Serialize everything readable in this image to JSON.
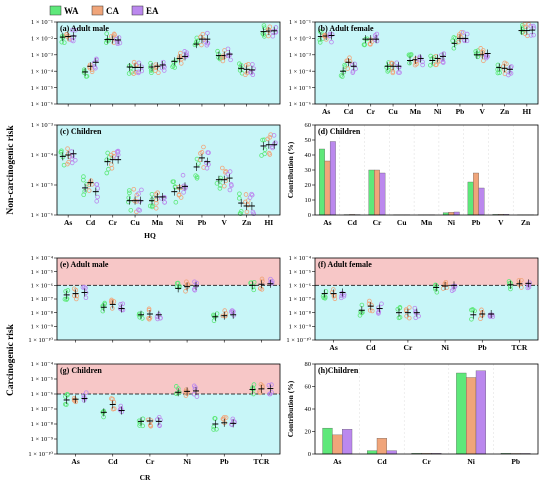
{
  "legend": [
    {
      "label": "WA",
      "color": "#5ee87a"
    },
    {
      "label": "CA",
      "color": "#f0a57a"
    },
    {
      "label": "EA",
      "color": "#bb88ee"
    }
  ],
  "colors": {
    "safe_bg": "#c8f6f8",
    "risk_bg": "#f7c7c7",
    "threshold_line": "#333333",
    "WA": "#5ee87a",
    "CA": "#f0a57a",
    "EA": "#bb88ee"
  },
  "section_labels": {
    "noncarc": "Non-carcinogenic risk",
    "carc": "Carcinogenic risk",
    "hq_axis": "HQ",
    "cr_axis": "CR",
    "contribution": "Contribution (%)"
  },
  "chart_data": [
    {
      "id": "a",
      "type": "scatter",
      "scale": "log",
      "title": "(a) Adult male",
      "ylim": [
        1e-06,
        0.1
      ],
      "tick_labels": [
        "1 × 10⁻⁶",
        "1 × 10⁻⁵",
        "1 × 10⁻⁴",
        "1 × 10⁻³",
        "1 × 10⁻²",
        "1 × 10⁻¹"
      ],
      "categories": [
        "As",
        "Cd",
        "Cr",
        "Cu",
        "Mn",
        "Ni",
        "Pb",
        "V",
        "Zn",
        "HI"
      ],
      "show_xlabels": false,
      "series": [
        {
          "name": "WA",
          "values": [
            0.012,
            9e-05,
            0.0085,
            0.00018,
            0.00018,
            0.0004,
            0.0045,
            0.0009,
            0.00015,
            0.026
          ]
        },
        {
          "name": "CA",
          "values": [
            0.013,
            0.0002,
            0.0085,
            0.00017,
            0.0002,
            0.0006,
            0.009,
            0.0009,
            0.00013,
            0.028
          ]
        },
        {
          "name": "EA",
          "values": [
            0.014,
            0.00035,
            0.008,
            0.00017,
            0.00024,
            0.0008,
            0.009,
            0.0011,
            0.00012,
            0.029
          ]
        }
      ]
    },
    {
      "id": "b",
      "type": "scatter",
      "scale": "log",
      "title": "(b) Adult female",
      "ylim": [
        1e-06,
        0.1
      ],
      "tick_labels": [
        "1 × 10⁻⁶",
        "1 × 10⁻⁵",
        "1 × 10⁻⁴",
        "1 × 10⁻³",
        "1 × 10⁻²",
        "1 × 10⁻¹"
      ],
      "categories": [
        "As",
        "Cd",
        "Cr",
        "Cu",
        "Mn",
        "Ni",
        "Pb",
        "V",
        "Zn",
        "HI"
      ],
      "show_xlabels": true,
      "series": [
        {
          "name": "WA",
          "values": [
            0.013,
            0.0001,
            0.009,
            0.0002,
            0.00045,
            0.00045,
            0.005,
            0.001,
            0.00017,
            0.03
          ]
        },
        {
          "name": "CA",
          "values": [
            0.014,
            0.00035,
            0.009,
            0.0002,
            0.0005,
            0.0006,
            0.01,
            0.001,
            0.00015,
            0.03
          ]
        },
        {
          "name": "EA",
          "values": [
            0.015,
            0.0002,
            0.009,
            0.0002,
            0.0006,
            0.0008,
            0.01,
            0.0012,
            0.00013,
            0.032
          ]
        }
      ]
    },
    {
      "id": "c",
      "type": "scatter",
      "scale": "log",
      "title": "(c) Children",
      "ylim": [
        1e-06,
        0.001
      ],
      "tick_labels": [
        "1 × 10⁻⁶",
        "1 × 10⁻⁵",
        "1 × 10⁻⁴",
        "1 × 10⁻³"
      ],
      "categories": [
        "As",
        "Cd",
        "Cr",
        "Cu",
        "Mn",
        "Ni",
        "Pb",
        "V",
        "Zn",
        "HI"
      ],
      "show_xlabels": true,
      "series": [
        {
          "name": "WA",
          "values": [
            9e-05,
            8e-06,
            6e-05,
            3e-06,
            3e-06,
            6e-06,
            4e-05,
            1.5e-05,
            2.5e-06,
            0.0002
          ]
        },
        {
          "name": "CA",
          "values": [
            0.0001,
            1.2e-05,
            7e-05,
            3e-06,
            4e-06,
            8e-06,
            8e-05,
            1.5e-05,
            2e-06,
            0.00022
          ]
        },
        {
          "name": "EA",
          "values": [
            0.00011,
            6e-06,
            7e-05,
            3e-06,
            4e-06,
            9e-06,
            6e-05,
            1.7e-05,
            2e-06,
            0.00022
          ]
        }
      ]
    },
    {
      "id": "d",
      "type": "bar",
      "title": "(d) Children",
      "ylim": [
        0,
        60
      ],
      "ticks": [
        0,
        10,
        20,
        30,
        40,
        50,
        60
      ],
      "ylabel": "Contribution (%)",
      "categories": [
        "As",
        "Cd",
        "Cr",
        "Cu",
        "Mn",
        "Ni",
        "Pb",
        "V",
        "Zn"
      ],
      "series": [
        {
          "name": "WA",
          "values": [
            44,
            0.3,
            30,
            0.2,
            0.2,
            1.5,
            22,
            0.4,
            0.2
          ]
        },
        {
          "name": "CA",
          "values": [
            36,
            0.4,
            30,
            0.2,
            0.2,
            1.8,
            28,
            0.5,
            0.2
          ]
        },
        {
          "name": "EA",
          "values": [
            49,
            0.3,
            28,
            0.2,
            0.2,
            2.0,
            18,
            0.5,
            0.2
          ]
        }
      ]
    },
    {
      "id": "e",
      "type": "scatter",
      "scale": "log",
      "title": "(e) Adult male",
      "ylim": [
        1e-10,
        0.0001
      ],
      "threshold": 1e-06,
      "tick_labels": [
        "1 × 10⁻¹⁰",
        "1 × 10⁻⁹",
        "1 × 10⁻⁸",
        "1 × 10⁻⁷",
        "1 × 10⁻⁶",
        "1 × 10⁻⁵",
        "1 × 10⁻⁴"
      ],
      "categories": [
        "As",
        "Cd",
        "Cr",
        "Ni",
        "Pb",
        "TCR"
      ],
      "show_xlabels": false,
      "series": [
        {
          "name": "WA",
          "values": [
            2e-07,
            2.5e-08,
            7e-09,
            6e-07,
            5e-09,
            1e-06
          ]
        },
        {
          "name": "CA",
          "values": [
            2.5e-07,
            4e-08,
            8e-09,
            8e-07,
            6e-09,
            1.2e-06
          ]
        },
        {
          "name": "EA",
          "values": [
            3e-07,
            2e-08,
            7e-09,
            9e-07,
            7e-09,
            1.3e-06
          ]
        }
      ]
    },
    {
      "id": "f",
      "type": "scatter",
      "scale": "log",
      "title": "(f) Adult female",
      "ylim": [
        1e-10,
        0.0001
      ],
      "threshold": 1e-06,
      "tick_labels": [
        "1 × 10⁻¹⁰",
        "1 × 10⁻⁹",
        "1 × 10⁻⁸",
        "1 × 10⁻⁷",
        "1 × 10⁻⁶",
        "1 × 10⁻⁵",
        "1 × 10⁻⁴"
      ],
      "categories": [
        "As",
        "Cd",
        "Cr",
        "Ni",
        "Pb",
        "TCR"
      ],
      "show_xlabels": true,
      "series": [
        {
          "name": "WA",
          "values": [
            2.5e-07,
            1.5e-08,
            1e-08,
            7e-07,
            7e-09,
            1.1e-06
          ]
        },
        {
          "name": "CA",
          "values": [
            2.5e-07,
            3e-08,
            1e-08,
            9e-07,
            8e-09,
            1.3e-06
          ]
        },
        {
          "name": "EA",
          "values": [
            3e-07,
            2e-08,
            1e-08,
            1e-06,
            8e-09,
            1.4e-06
          ]
        }
      ]
    },
    {
      "id": "g",
      "type": "scatter",
      "scale": "log",
      "title": "(g) Children",
      "ylim": [
        1e-10,
        0.0001
      ],
      "threshold": 1e-06,
      "tick_labels": [
        "1 × 10⁻¹⁰",
        "1 × 10⁻⁹",
        "1 × 10⁻⁸",
        "1 × 10⁻⁷",
        "1 × 10⁻⁶",
        "1 × 10⁻⁵",
        "1 × 10⁻⁴"
      ],
      "categories": [
        "As",
        "Cd",
        "Cr",
        "Ni",
        "Pb",
        "TCR"
      ],
      "show_xlabels": true,
      "series": [
        {
          "name": "WA",
          "values": [
            4e-07,
            6e-08,
            1.5e-08,
            1.3e-06,
            1e-08,
            2e-06
          ]
        },
        {
          "name": "CA",
          "values": [
            4.5e-07,
            2e-07,
            1.6e-08,
            1.5e-06,
            1.2e-08,
            2.2e-06
          ]
        },
        {
          "name": "EA",
          "values": [
            5e-07,
            8e-08,
            1.5e-08,
            1.6e-06,
            1.1e-08,
            2.3e-06
          ]
        }
      ]
    },
    {
      "id": "h",
      "type": "bar",
      "title": "(h)Children",
      "ylim": [
        0,
        80
      ],
      "ticks": [
        0,
        20,
        40,
        60,
        80
      ],
      "ylabel": "Contribution (%)",
      "categories": [
        "As",
        "Cd",
        "Cr",
        "Ni",
        "Pb"
      ],
      "series": [
        {
          "name": "WA",
          "values": [
            23,
            3,
            0.6,
            72,
            0.6
          ]
        },
        {
          "name": "CA",
          "values": [
            17,
            14,
            0.6,
            68,
            0.5
          ]
        },
        {
          "name": "EA",
          "values": [
            22,
            3,
            0.6,
            74,
            0.5
          ]
        }
      ]
    }
  ]
}
